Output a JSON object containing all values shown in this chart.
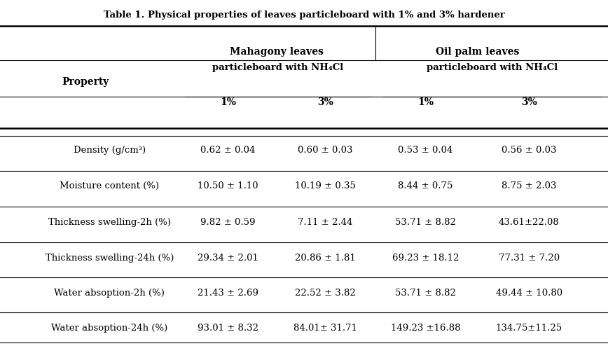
{
  "title": "Table 1. Physical properties of leaves particleboard with 1% and 3% hardener",
  "col_headers": {
    "group1": "Mahagony leaves",
    "group1_sub": "particleboard with NH₄Cl",
    "group2": "Oil palm leaves",
    "group2_sub": "particleboard with NH₄Cl",
    "pct1": "1%",
    "pct3": "3%"
  },
  "row_header": "Property",
  "rows": [
    {
      "property": "Density (g/cm³)",
      "m1": "0.62 ± 0.04",
      "m3": "0.60 ± 0.03",
      "o1": "0.53 ± 0.04",
      "o3": "0.56 ± 0.03"
    },
    {
      "property": "Moisture content (%)",
      "m1": "10.50 ± 1.10",
      "m3": "10.19 ± 0.35",
      "o1": "8.44 ± 0.75",
      "o3": "8.75 ± 2.03"
    },
    {
      "property": "Thickness swelling-2h (%)",
      "m1": "9.82 ± 0.59",
      "m3": "7.11 ± 2.44",
      "o1": "53.71 ± 8.82",
      "o3": "43.61±22.08"
    },
    {
      "property": "Thickness swelling-24h (%)",
      "m1": "29.34 ± 2.01",
      "m3": "20.86 ± 1.81",
      "o1": "69.23 ± 18.12",
      "o3": "77.31 ± 7.20"
    },
    {
      "property": "Water absoption-2h (%)",
      "m1": "21.43 ± 2.69",
      "m3": "22.52 ± 3.82",
      "o1": "53.71 ± 8.82",
      "o3": "49.44 ± 10.80"
    },
    {
      "property": "Water absoption-24h (%)",
      "m1": "93.01 ± 8.32",
      "m3": "84.01± 31.71",
      "o1": "149.23 ±16.88",
      "o3": "134.75±11.25"
    }
  ],
  "bg_color": "#ffffff",
  "text_color": "#000000",
  "line_color": "#000000"
}
